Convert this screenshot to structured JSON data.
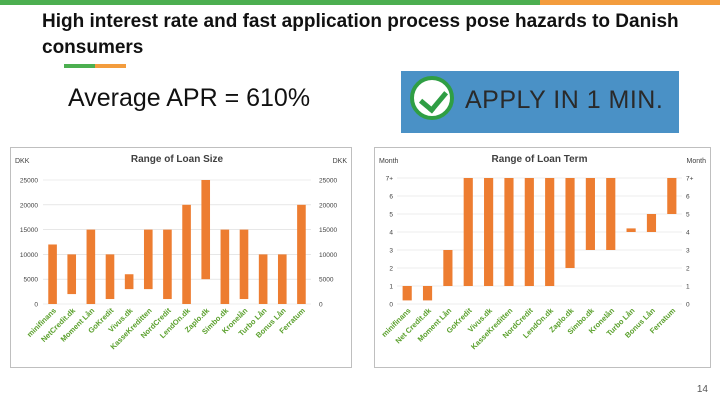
{
  "slide": {
    "title": "High interest rate and fast application process pose hazards to Danish consumers",
    "apr_text": "Average APR = 610%",
    "banner_text": "APPLY IN 1 MIN.",
    "page_number": "14"
  },
  "colors": {
    "bar": "#ed7d31",
    "accent_green": "#4caf50",
    "accent_orange": "#f39c3d",
    "banner_bg": "#4a91c6",
    "check": "#2f9e44"
  },
  "chart_data": [
    {
      "type": "bar",
      "title": "Range of Loan Size",
      "ylabel_left": "DKK",
      "ylabel_right": "DKK",
      "categories": [
        "minifinans",
        "NetCredit.dk",
        "Moment Lån",
        "GoKredit",
        "Vivus.dk",
        "KasseKreditten",
        "NordCredit",
        "LendOn.dk",
        "Zaplo.dk",
        "Simbo.dk",
        "Kronelån",
        "Turbo Lån",
        "Bonus Lån",
        "Ferratum"
      ],
      "ranges": [
        [
          0,
          12000
        ],
        [
          2000,
          10000
        ],
        [
          0,
          15000
        ],
        [
          1000,
          10000
        ],
        [
          3000,
          6000
        ],
        [
          3000,
          15000
        ],
        [
          1000,
          15000
        ],
        [
          0,
          20000
        ],
        [
          5000,
          25000
        ],
        [
          0,
          15000
        ],
        [
          1000,
          15000
        ],
        [
          0,
          10000
        ],
        [
          0,
          10000
        ],
        [
          0,
          20000
        ]
      ],
      "yticks_left": [
        "0",
        "5000",
        "10000",
        "15000",
        "20000",
        "25000"
      ],
      "yticks_right": [
        "0",
        "5000",
        "10000",
        "15000",
        "20000",
        "25000"
      ],
      "ylim": [
        0,
        25000
      ]
    },
    {
      "type": "bar",
      "title": "Range of Loan Term",
      "ylabel_left": "Month",
      "ylabel_right": "Month",
      "categories": [
        "minifinans",
        "Net Credit.dk",
        "Moment Lån",
        "GoKredit",
        "Vivus.dk",
        "KasseKreditten",
        "NordCredit",
        "LendOn.dk",
        "Zaplo.dk",
        "Simbo.dk",
        "Kronelån",
        "Turbo Lån",
        "Bonus Lån",
        "Ferratum"
      ],
      "ranges": [
        [
          0.2,
          1
        ],
        [
          0.2,
          1
        ],
        [
          1,
          3
        ],
        [
          1,
          7
        ],
        [
          1,
          7
        ],
        [
          1,
          7
        ],
        [
          1,
          7
        ],
        [
          1,
          7
        ],
        [
          2,
          7
        ],
        [
          3,
          7
        ],
        [
          3,
          7
        ],
        [
          4,
          4.2
        ],
        [
          4,
          5
        ],
        [
          5,
          7
        ]
      ],
      "yticks_left": [
        "0",
        "1",
        "2",
        "3",
        "4",
        "5",
        "6",
        "7+"
      ],
      "yticks_right": [
        "0",
        "1",
        "2",
        "3",
        "4",
        "5",
        "6",
        "7+"
      ],
      "ylim": [
        0,
        7
      ]
    }
  ]
}
